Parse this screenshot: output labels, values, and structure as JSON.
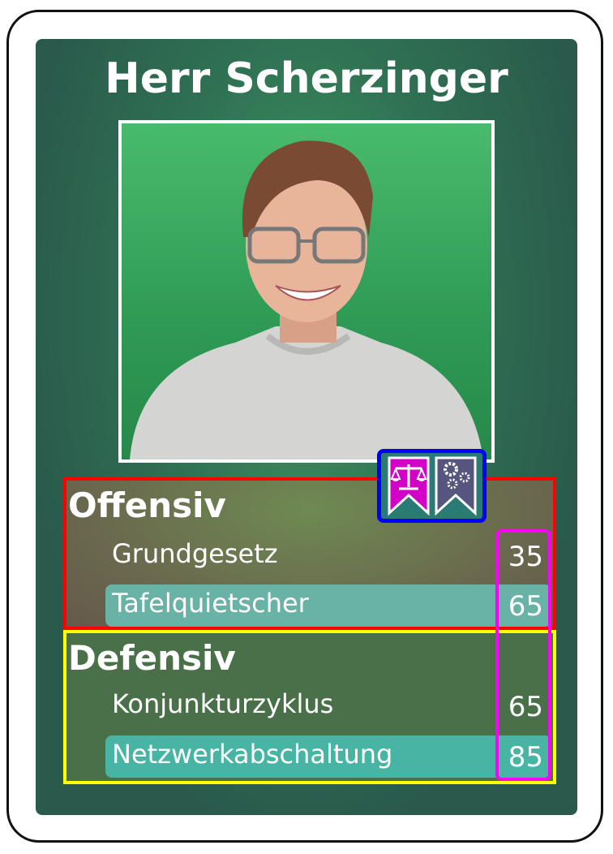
{
  "card": {
    "name": "Herr Scherzinger",
    "badges": [
      {
        "icon": "scales-icon",
        "color": "#d300c8"
      },
      {
        "icon": "gears-icon",
        "color": "#565580"
      }
    ],
    "offensive": {
      "heading": "Offensiv",
      "stats": [
        {
          "label": "Grundgesetz",
          "value": "35",
          "highlighted": false
        },
        {
          "label": "Tafelquietscher",
          "value": "65",
          "highlighted": true
        }
      ]
    },
    "defensive": {
      "heading": "Defensiv",
      "stats": [
        {
          "label": "Konjunkturzyklus",
          "value": "65",
          "highlighted": false
        },
        {
          "label": "Netzwerkabschaltung",
          "value": "85",
          "highlighted": true
        }
      ]
    }
  }
}
